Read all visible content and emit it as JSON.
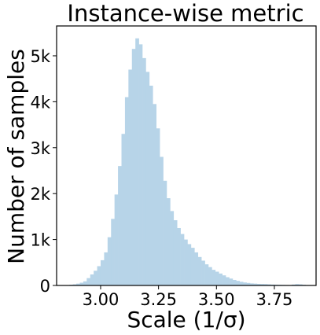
{
  "chart_data": {
    "type": "bar",
    "title": "Instance-wise metric",
    "xlabel": "Scale (1/σ)",
    "ylabel": "Number of samples",
    "xlim": [
      2.81,
      3.93
    ],
    "ylim": [
      0,
      5650
    ],
    "x_ticks": [
      {
        "value": 3.0,
        "label": "3.00"
      },
      {
        "value": 3.25,
        "label": "3.25"
      },
      {
        "value": 3.5,
        "label": "3.50"
      },
      {
        "value": 3.75,
        "label": "3.75"
      }
    ],
    "y_ticks": [
      {
        "value": 0,
        "label": "0"
      },
      {
        "value": 1000,
        "label": "1k"
      },
      {
        "value": 2000,
        "label": "2k"
      },
      {
        "value": 3000,
        "label": "3k"
      },
      {
        "value": 4000,
        "label": "4k"
      },
      {
        "value": 5000,
        "label": "5k"
      }
    ],
    "bar_color": "#b7d4e8",
    "grid": false,
    "legend": "none",
    "bin_edges": [
      2.865,
      2.88,
      2.895,
      2.91,
      2.925,
      2.94,
      2.955,
      2.97,
      2.985,
      3.0,
      3.015,
      3.03,
      3.045,
      3.06,
      3.075,
      3.09,
      3.105,
      3.12,
      3.135,
      3.15,
      3.165,
      3.18,
      3.195,
      3.21,
      3.225,
      3.24,
      3.255,
      3.27,
      3.285,
      3.3,
      3.315,
      3.33,
      3.345,
      3.36,
      3.375,
      3.39,
      3.405,
      3.42,
      3.435,
      3.45,
      3.465,
      3.48,
      3.495,
      3.51,
      3.525,
      3.54,
      3.555,
      3.57,
      3.585,
      3.6,
      3.615,
      3.63,
      3.645,
      3.66,
      3.675,
      3.69,
      3.705,
      3.72,
      3.735,
      3.75,
      3.765,
      3.78,
      3.795,
      3.81,
      3.825,
      3.84,
      3.855,
      3.87,
      3.885,
      3.9
    ],
    "counts": [
      15,
      25,
      40,
      60,
      90,
      160,
      240,
      320,
      420,
      550,
      720,
      1050,
      1450,
      1980,
      2600,
      3300,
      4100,
      4700,
      5150,
      5380,
      5250,
      4950,
      4650,
      4350,
      3950,
      3420,
      2800,
      2280,
      1900,
      1620,
      1420,
      1250,
      1120,
      1000,
      900,
      820,
      720,
      620,
      540,
      460,
      400,
      340,
      300,
      260,
      220,
      180,
      150,
      120,
      100,
      80,
      65,
      55,
      45,
      40,
      35,
      32,
      30,
      25,
      20,
      18,
      15,
      12,
      10,
      8,
      20,
      30,
      25,
      15,
      8
    ]
  }
}
